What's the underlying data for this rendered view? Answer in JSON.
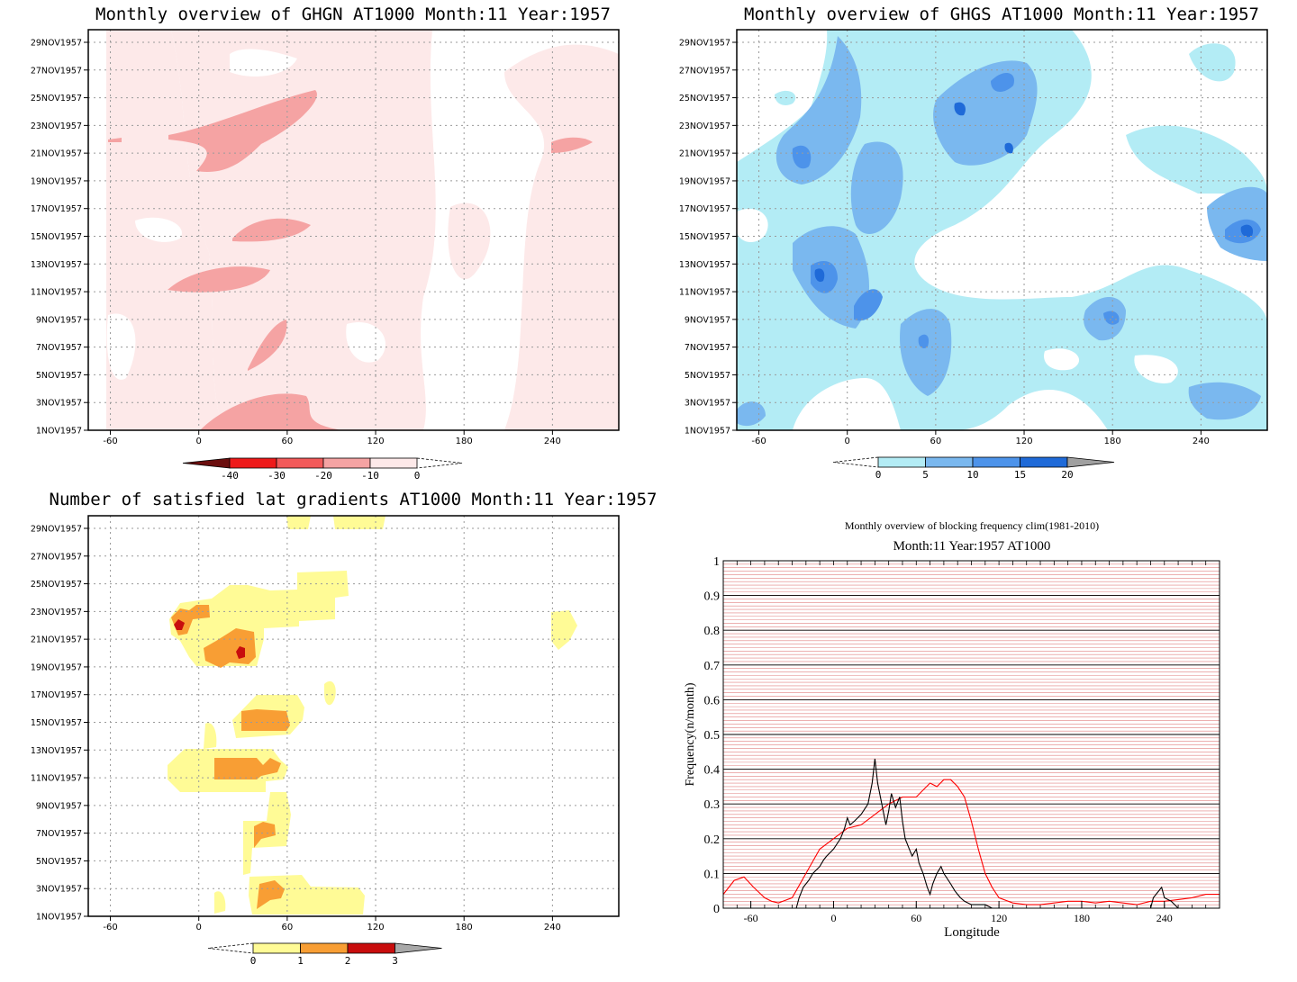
{
  "panels": {
    "ghgn": {
      "title": "Monthly overview of GHGN AT1000 Month:11 Year:1957",
      "dates": [
        "1NOV1957",
        "3NOV1957",
        "5NOV1957",
        "7NOV1957",
        "9NOV1957",
        "11NOV1957",
        "13NOV1957",
        "15NOV1957",
        "17NOV1957",
        "19NOV1957",
        "21NOV1957",
        "23NOV1957",
        "25NOV1957",
        "27NOV1957",
        "29NOV1957"
      ],
      "xticks": [
        "-60",
        "0",
        "60",
        "120",
        "180",
        "240"
      ],
      "colorbar": {
        "labels": [
          "-40",
          "-30",
          "-20",
          "-10",
          "0"
        ],
        "colors": [
          "#6b0e0e",
          "#ee1a1a",
          "#f25a5a",
          "#f5a3a3",
          "#fde9e9"
        ]
      }
    },
    "ghgs": {
      "title": "Monthly overview of GHGS AT1000 Month:11 Year:1957",
      "dates": [
        "1NOV1957",
        "3NOV1957",
        "5NOV1957",
        "7NOV1957",
        "9NOV1957",
        "11NOV1957",
        "13NOV1957",
        "15NOV1957",
        "17NOV1957",
        "19NOV1957",
        "21NOV1957",
        "23NOV1957",
        "25NOV1957",
        "27NOV1957",
        "29NOV1957"
      ],
      "xticks": [
        "-60",
        "0",
        "60",
        "120",
        "180",
        "240"
      ],
      "colorbar": {
        "labels": [
          "0",
          "5",
          "10",
          "15",
          "20"
        ],
        "colors": [
          "#b3ecf5",
          "#7ab8ef",
          "#4d93ea",
          "#1f6ad8",
          "#a0a0a0"
        ]
      }
    },
    "lat": {
      "title": "Number of satisfied lat gradients AT1000 Month:11 Year:1957",
      "dates": [
        "1NOV1957",
        "3NOV1957",
        "5NOV1957",
        "7NOV1957",
        "9NOV1957",
        "11NOV1957",
        "13NOV1957",
        "15NOV1957",
        "17NOV1957",
        "19NOV1957",
        "21NOV1957",
        "23NOV1957",
        "25NOV1957",
        "27NOV1957",
        "29NOV1957"
      ],
      "xticks": [
        "-60",
        "0",
        "60",
        "120",
        "180",
        "240"
      ],
      "colorbar": {
        "labels": [
          "0",
          "1",
          "2",
          "3"
        ],
        "colors": [
          "#fffb96",
          "#f89e34",
          "#c80d0d",
          "#a8a8a8"
        ]
      }
    },
    "freq": {
      "title_line1": "Monthly overview of blocking frequency clim(1981-2010)",
      "title_line2": "Month:11 Year:1957  AT1000",
      "ylabel": "Frequency(n/month)",
      "xlabel": "Longitude"
    }
  },
  "chart_data": [
    {
      "type": "heatmap",
      "title": "Monthly overview of GHGN AT1000 Month:11 Year:1957",
      "xlim": [
        -75,
        285
      ],
      "x_ticks": [
        -60,
        0,
        60,
        120,
        180,
        240
      ],
      "y_ticks": [
        "1NOV1957",
        "3NOV1957",
        "5NOV1957",
        "7NOV1957",
        "9NOV1957",
        "11NOV1957",
        "13NOV1957",
        "15NOV1957",
        "17NOV1957",
        "19NOV1957",
        "21NOV1957",
        "23NOV1957",
        "25NOV1957",
        "27NOV1957",
        "29NOV1957"
      ],
      "levels": [
        -40,
        -30,
        -20,
        -10,
        0
      ],
      "colors": [
        "#6b0e0e",
        "#ee1a1a",
        "#f25a5a",
        "#f5a3a3",
        "#fde9e9"
      ],
      "grid": true
    },
    {
      "type": "heatmap",
      "title": "Monthly overview of GHGS AT1000 Month:11 Year:1957",
      "xlim": [
        -75,
        285
      ],
      "x_ticks": [
        -60,
        0,
        60,
        120,
        180,
        240
      ],
      "y_ticks": [
        "1NOV1957",
        "3NOV1957",
        "5NOV1957",
        "7NOV1957",
        "9NOV1957",
        "11NOV1957",
        "13NOV1957",
        "15NOV1957",
        "17NOV1957",
        "19NOV1957",
        "21NOV1957",
        "23NOV1957",
        "25NOV1957",
        "27NOV1957",
        "29NOV1957"
      ],
      "levels": [
        0,
        5,
        10,
        15,
        20
      ],
      "colors": [
        "#b3ecf5",
        "#7ab8ef",
        "#4d93ea",
        "#1f6ad8",
        "#a0a0a0"
      ],
      "grid": true
    },
    {
      "type": "heatmap",
      "title": "Number of satisfied lat gradients AT1000 Month:11 Year:1957",
      "xlim": [
        -75,
        285
      ],
      "x_ticks": [
        -60,
        0,
        60,
        120,
        180,
        240
      ],
      "y_ticks": [
        "1NOV1957",
        "3NOV1957",
        "5NOV1957",
        "7NOV1957",
        "9NOV1957",
        "11NOV1957",
        "13NOV1957",
        "15NOV1957",
        "17NOV1957",
        "19NOV1957",
        "21NOV1957",
        "23NOV1957",
        "25NOV1957",
        "27NOV1957",
        "29NOV1957"
      ],
      "levels": [
        0,
        1,
        2,
        3
      ],
      "colors": [
        "#fffb96",
        "#f89e34",
        "#c80d0d",
        "#a8a8a8"
      ],
      "grid": true
    },
    {
      "type": "line",
      "title": "Monthly overview of blocking frequency clim(1981-2010)",
      "subtitle": "Month:11 Year:1957  AT1000",
      "xlabel": "Longitude",
      "ylabel": "Frequency(n/month)",
      "xlim": [
        -80,
        280
      ],
      "ylim": [
        0,
        1
      ],
      "x_ticks": [
        -60,
        0,
        60,
        120,
        180,
        240
      ],
      "y_ticks": [
        0,
        0.1,
        0.2,
        0.3,
        0.4,
        0.5,
        0.6,
        0.7,
        0.8,
        0.9,
        1
      ],
      "grid": true,
      "series": [
        {
          "color": "#ff0000",
          "x": [
            -80,
            -72,
            -65,
            -58,
            -50,
            -45,
            -40,
            -30,
            -20,
            -10,
            0,
            10,
            20,
            30,
            40,
            50,
            60,
            65,
            70,
            75,
            80,
            85,
            90,
            95,
            100,
            105,
            110,
            115,
            120,
            130,
            140,
            150,
            160,
            170,
            180,
            190,
            200,
            210,
            220,
            230,
            240,
            250,
            260,
            270,
            280
          ],
          "y": [
            0.04,
            0.08,
            0.09,
            0.06,
            0.03,
            0.02,
            0.015,
            0.03,
            0.1,
            0.17,
            0.2,
            0.23,
            0.24,
            0.27,
            0.3,
            0.32,
            0.32,
            0.34,
            0.36,
            0.35,
            0.37,
            0.37,
            0.35,
            0.32,
            0.25,
            0.17,
            0.1,
            0.06,
            0.03,
            0.015,
            0.01,
            0.01,
            0.015,
            0.02,
            0.02,
            0.015,
            0.02,
            0.015,
            0.01,
            0.02,
            0.02,
            0.025,
            0.03,
            0.04,
            0.04
          ]
        },
        {
          "color": "#000000",
          "x": [
            -27,
            -25,
            -22,
            -18,
            -15,
            -10,
            -7,
            -5,
            0,
            5,
            8,
            10,
            12,
            15,
            20,
            25,
            28,
            30,
            32,
            35,
            38,
            40,
            42,
            45,
            48,
            50,
            52,
            55,
            57,
            60,
            62,
            65,
            68,
            70,
            72,
            75,
            78,
            80,
            85,
            88,
            90,
            92,
            95,
            100,
            110,
            115,
            120,
            230,
            232,
            238,
            240,
            245,
            250
          ],
          "y": [
            0,
            0.03,
            0.06,
            0.08,
            0.1,
            0.12,
            0.14,
            0.15,
            0.17,
            0.2,
            0.23,
            0.26,
            0.24,
            0.25,
            0.27,
            0.3,
            0.36,
            0.43,
            0.36,
            0.3,
            0.24,
            0.28,
            0.33,
            0.29,
            0.32,
            0.25,
            0.2,
            0.17,
            0.15,
            0.17,
            0.13,
            0.1,
            0.06,
            0.04,
            0.07,
            0.1,
            0.12,
            0.1,
            0.07,
            0.05,
            0.04,
            0.03,
            0.02,
            0.01,
            0.01,
            0,
            0,
            0,
            0.03,
            0.06,
            0.03,
            0.02,
            0
          ]
        }
      ]
    }
  ]
}
